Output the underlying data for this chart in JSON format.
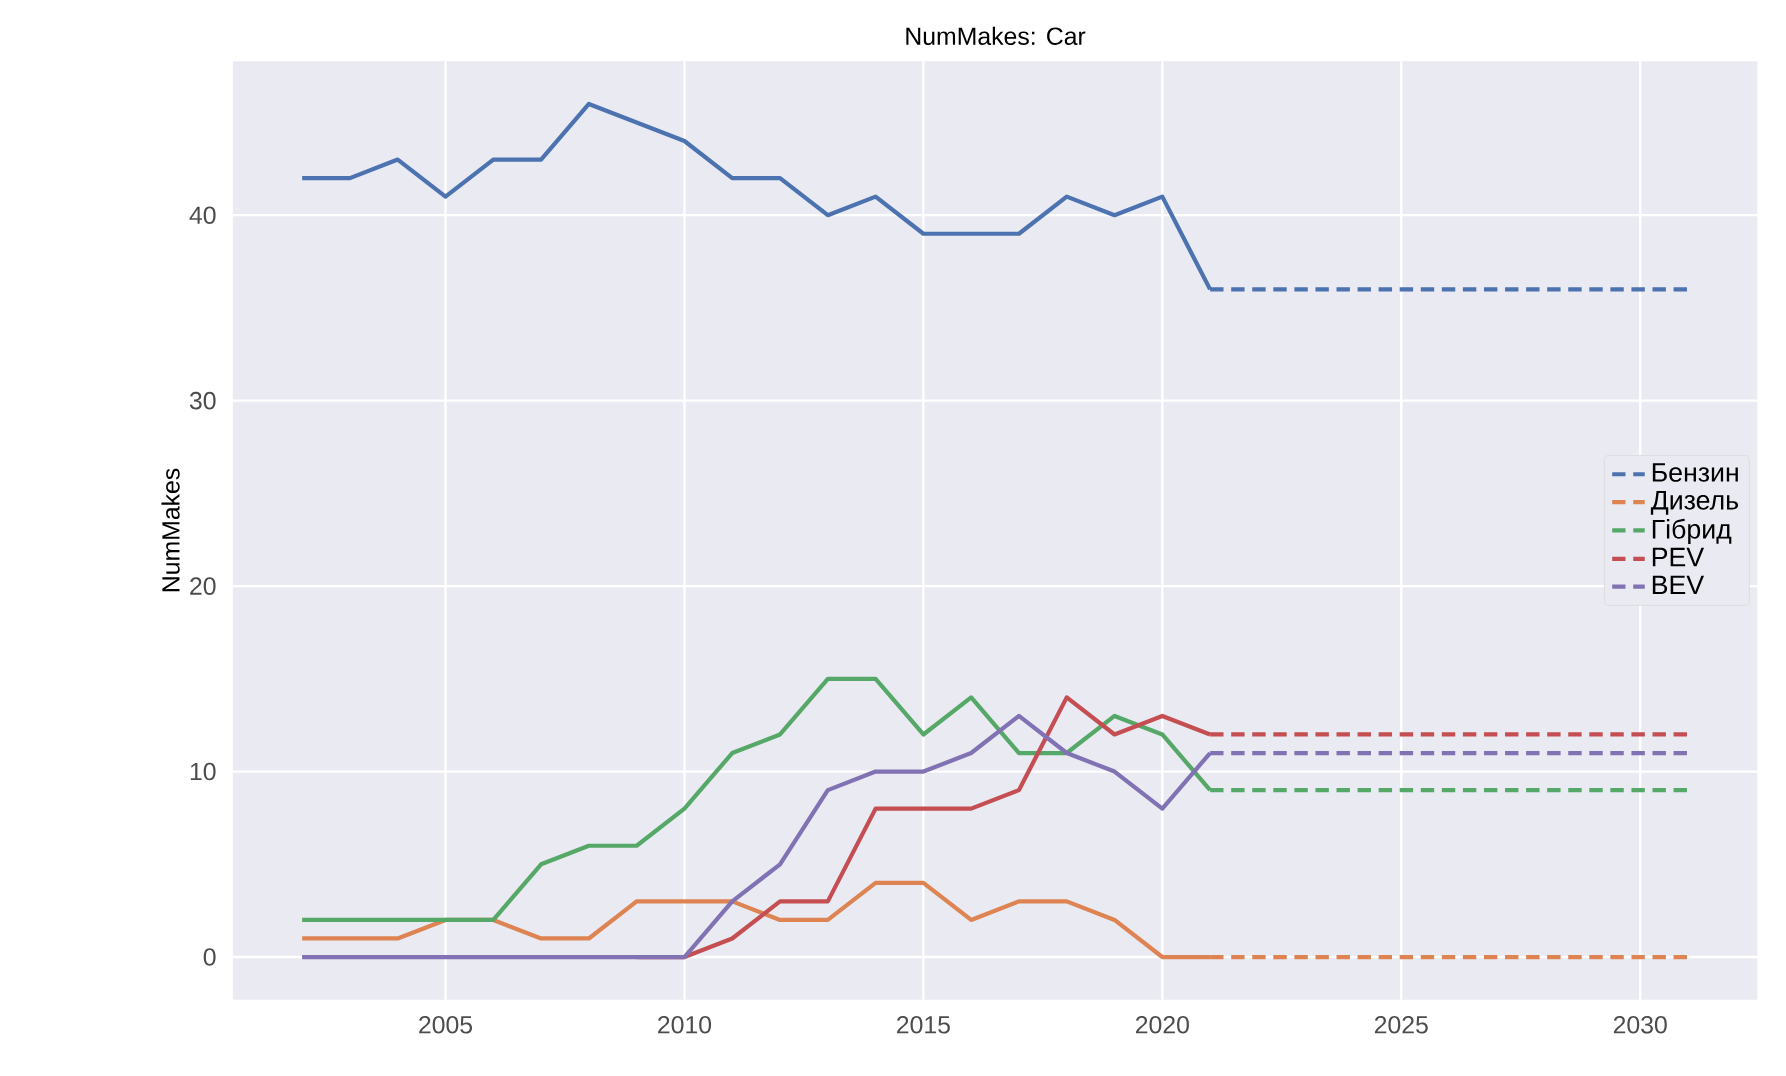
{
  "chart_data": {
    "type": "line",
    "title": "NumMakes: Car",
    "ylabel": "NumMakes",
    "x": [
      2002,
      2003,
      2004,
      2005,
      2006,
      2007,
      2008,
      2009,
      2010,
      2011,
      2012,
      2013,
      2014,
      2015,
      2016,
      2017,
      2018,
      2019,
      2020,
      2021,
      2031
    ],
    "series": [
      {
        "color": "#4c72b0",
        "values": [
          42,
          42,
          43,
          41,
          43,
          43,
          46,
          45,
          44,
          42,
          42,
          40,
          41,
          39,
          39,
          39,
          41,
          40,
          41,
          36,
          null
        ]
      },
      {
        "color": "#dd8452",
        "values": [
          1,
          1,
          1,
          2,
          2,
          1,
          1,
          3,
          3,
          3,
          2,
          2,
          4,
          4,
          2,
          3,
          3,
          2,
          0,
          0,
          null
        ]
      },
      {
        "color": "#55a868",
        "values": [
          2,
          2,
          2,
          2,
          2,
          5,
          6,
          6,
          8,
          11,
          12,
          15,
          15,
          12,
          14,
          11,
          11,
          13,
          12,
          9,
          null
        ]
      },
      {
        "color": "#c44e52",
        "values": [
          null,
          null,
          null,
          null,
          null,
          null,
          null,
          0,
          0,
          1,
          3,
          3,
          8,
          8,
          8,
          9,
          14,
          12,
          13,
          12,
          null
        ]
      },
      {
        "color": "#8172b3",
        "values": [
          0,
          0,
          0,
          0,
          0,
          0,
          0,
          0,
          0,
          3,
          5,
          9,
          10,
          10,
          11,
          13,
          11,
          10,
          8,
          11,
          null
        ]
      },
      {
        "name": "Бензин",
        "color": "#4c72b0",
        "line_style": "dashed",
        "values": [
          null,
          null,
          null,
          null,
          null,
          null,
          null,
          null,
          null,
          null,
          null,
          null,
          null,
          null,
          null,
          null,
          null,
          null,
          null,
          36,
          36
        ]
      },
      {
        "name": "Дизель",
        "color": "#dd8452",
        "line_style": "dashed",
        "values": [
          null,
          null,
          null,
          null,
          null,
          null,
          null,
          null,
          null,
          null,
          null,
          null,
          null,
          null,
          null,
          null,
          null,
          null,
          null,
          0,
          0
        ]
      },
      {
        "name": "Гібрид",
        "color": "#55a868",
        "line_style": "dashed",
        "values": [
          null,
          null,
          null,
          null,
          null,
          null,
          null,
          null,
          null,
          null,
          null,
          null,
          null,
          null,
          null,
          null,
          null,
          null,
          null,
          9,
          9
        ]
      },
      {
        "name": "PEV",
        "color": "#c44e52",
        "line_style": "dashed",
        "values": [
          null,
          null,
          null,
          null,
          null,
          null,
          null,
          null,
          null,
          null,
          null,
          null,
          null,
          null,
          null,
          null,
          null,
          null,
          null,
          12,
          12
        ]
      },
      {
        "name": "BEV",
        "color": "#8172b3",
        "line_style": "dashed",
        "values": [
          null,
          null,
          null,
          null,
          null,
          null,
          null,
          null,
          null,
          null,
          null,
          null,
          null,
          null,
          null,
          null,
          null,
          null,
          null,
          11,
          11
        ]
      }
    ],
    "xlim": [
      2000.55,
      2032.45
    ],
    "ylim": [
      -2.3,
      48.3
    ],
    "xticks": [
      2005,
      2010,
      2015,
      2020,
      2025,
      2030
    ],
    "yticks": [
      0,
      10,
      20,
      30,
      40
    ],
    "grid": true,
    "legend": "right",
    "line_style": "solid"
  }
}
